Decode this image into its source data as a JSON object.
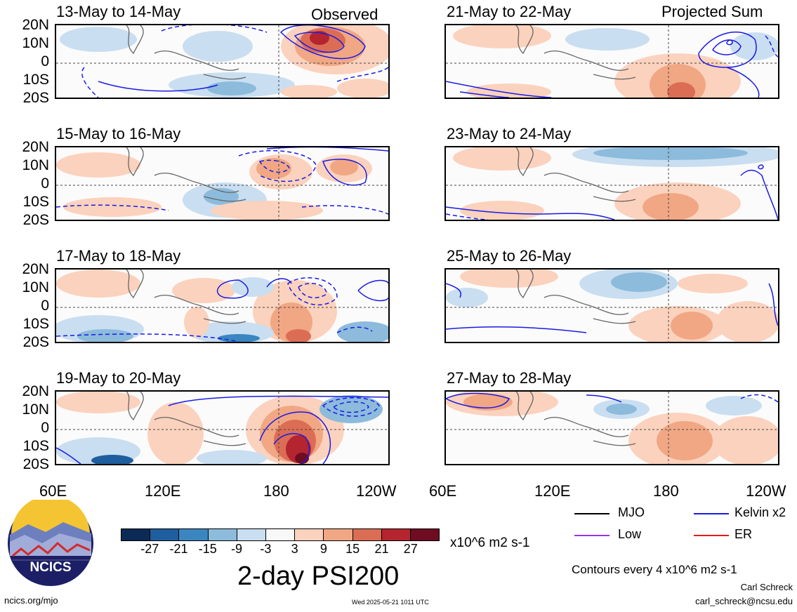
{
  "panels_left": [
    {
      "title": "13-May to 14-May",
      "tag": "Observed"
    },
    {
      "title": "15-May to 16-May",
      "tag": ""
    },
    {
      "title": "17-May to 18-May",
      "tag": ""
    },
    {
      "title": "19-May to 20-May",
      "tag": ""
    }
  ],
  "panels_right": [
    {
      "title": "21-May to 22-May",
      "tag": "Projected Sum"
    },
    {
      "title": "23-May to 24-May",
      "tag": ""
    },
    {
      "title": "25-May to 26-May",
      "tag": ""
    },
    {
      "title": "27-May to 28-May",
      "tag": ""
    }
  ],
  "lat_labels": [
    "20N",
    "10N",
    "0",
    "10S",
    "20S"
  ],
  "lon_labels": [
    "60E",
    "120E",
    "180",
    "120W"
  ],
  "colorbar": {
    "colors": [
      "#0b2a56",
      "#1f5e9e",
      "#3a86c0",
      "#8cbbdc",
      "#c9def0",
      "#f8f8f8",
      "#fbd2bd",
      "#f1a784",
      "#dc6d55",
      "#b4252f",
      "#6e0c22"
    ],
    "tick_labels": [
      "-27",
      "-21",
      "-15",
      "-9",
      "-3",
      "3",
      "9",
      "15",
      "21",
      "27"
    ],
    "units": "x10^6 m2 s-1"
  },
  "main_title": "2-day PSI200",
  "legend": [
    {
      "label": "MJO",
      "color": "#000000"
    },
    {
      "label": "Kelvin x2",
      "color": "#1a1ae6"
    },
    {
      "label": "Low",
      "color": "#9933e6"
    },
    {
      "label": "ER",
      "color": "#e61a1a"
    }
  ],
  "contour_note": "Contours every 4 x10^6 m2 s-1",
  "author": "Carl Schreck",
  "email": "carl_schreck@ncsu.edu",
  "site": "ncics.org/mjo",
  "timestamp": "Wed 2025-05-21 1011 UTC",
  "logo_text": "NCICS"
}
